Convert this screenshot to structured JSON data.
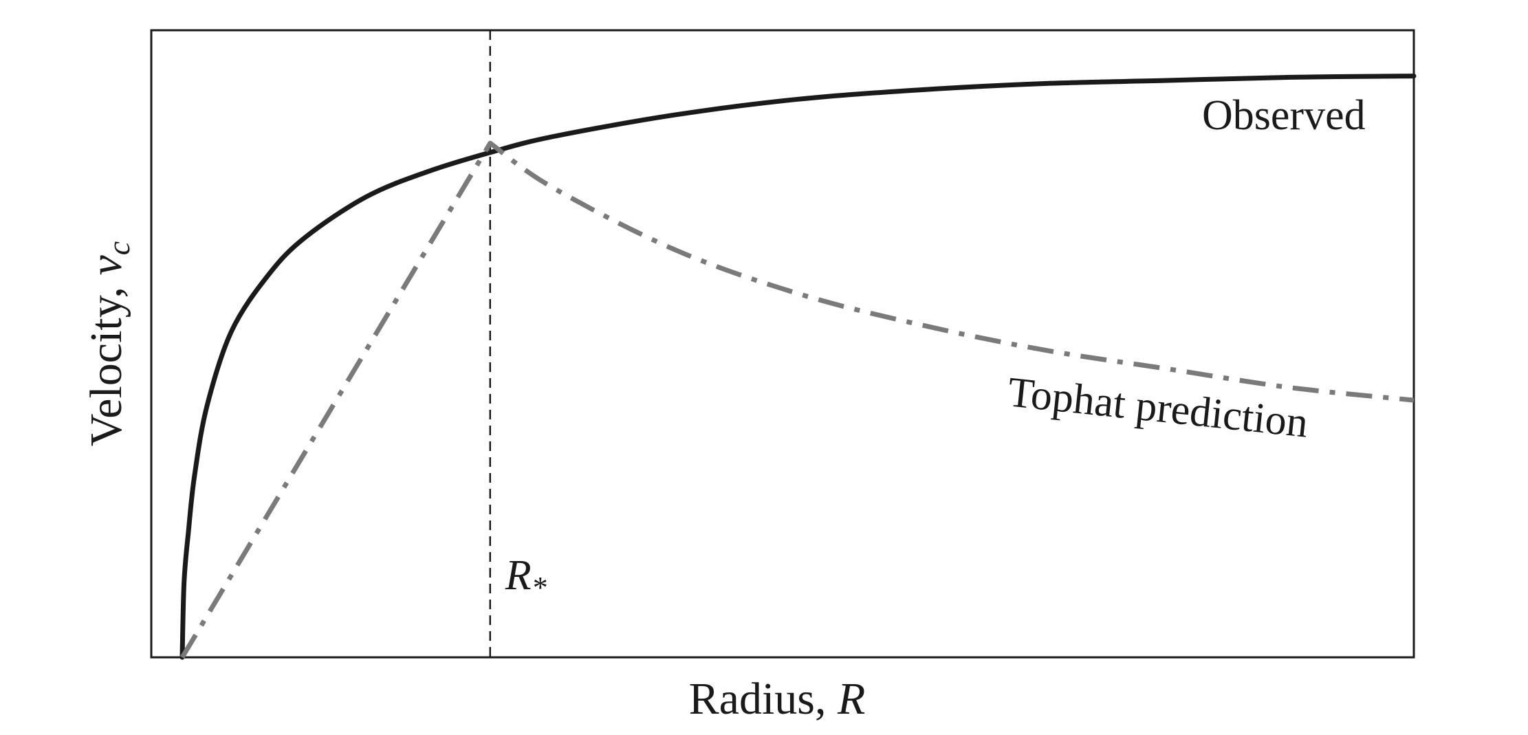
{
  "chart_data": {
    "type": "line",
    "title": "",
    "xlabel": {
      "text": "Radius, ",
      "symbol": "R"
    },
    "ylabel": {
      "text": "Velocity, ",
      "symbol": "v",
      "subscript": "c"
    },
    "xlim": [
      0,
      1
    ],
    "ylim": [
      0,
      1
    ],
    "grid": false,
    "ticks": false,
    "reference_lines": [
      {
        "x": 0.25,
        "label_symbol": "R",
        "label_subscript": "*",
        "style": "dashed",
        "color": "#1a1a1a"
      }
    ],
    "series": [
      {
        "name": "Observed",
        "style": "solid",
        "color": "#1a1a1a",
        "x": [
          0.0,
          0.0015,
          0.005,
          0.01,
          0.02,
          0.04,
          0.07,
          0.1,
          0.15,
          0.2,
          0.25,
          0.3,
          0.4,
          0.5,
          0.6,
          0.7,
          0.8,
          0.9,
          1.0
        ],
        "y": [
          0.0,
          0.12,
          0.2,
          0.29,
          0.4,
          0.52,
          0.61,
          0.67,
          0.735,
          0.775,
          0.805,
          0.83,
          0.865,
          0.89,
          0.905,
          0.915,
          0.92,
          0.925,
          0.927
        ]
      },
      {
        "name": "Tophat prediction",
        "style": "dashdot",
        "color": "#7a7a7a",
        "x": [
          0.0,
          0.25,
          0.3,
          0.4,
          0.5,
          0.6,
          0.7,
          0.8,
          0.9,
          1.0
        ],
        "y": [
          0.0,
          0.82,
          0.75,
          0.65,
          0.58,
          0.53,
          0.49,
          0.46,
          0.43,
          0.41
        ]
      }
    ]
  }
}
